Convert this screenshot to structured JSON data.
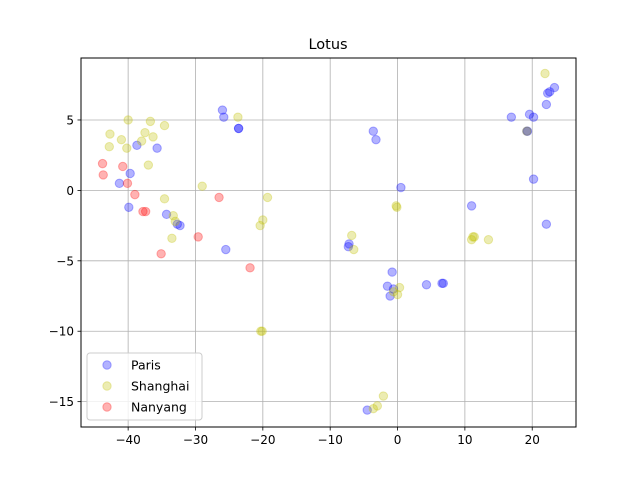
{
  "chart_data": {
    "type": "scatter",
    "title": "Lotus",
    "xlabel": "",
    "ylabel": "",
    "xlim": [
      -47,
      26.5
    ],
    "ylim": [
      -16.8,
      9.4
    ],
    "xticks": [
      -40,
      -30,
      -20,
      -10,
      0,
      10,
      20
    ],
    "yticks": [
      -15,
      -10,
      -5,
      0,
      5
    ],
    "xtick_labels": [
      "−40",
      "−30",
      "−20",
      "−10",
      "0",
      "10",
      "20"
    ],
    "ytick_labels": [
      "−15",
      "−10",
      "−5",
      "0",
      "5"
    ],
    "grid": true,
    "legend_position": "lower-left",
    "series": [
      {
        "name": "Paris",
        "color": "#0000ff",
        "points": [
          [
            -26,
            5.7
          ],
          [
            -25.8,
            5.2
          ],
          [
            -23.6,
            4.4
          ],
          [
            -23.6,
            4.4
          ],
          [
            -38.7,
            3.2
          ],
          [
            -35.7,
            3
          ],
          [
            -39.7,
            1.2
          ],
          [
            -41.3,
            0.5
          ],
          [
            -39.9,
            -1.2
          ],
          [
            -34.3,
            -1.7
          ],
          [
            -32.7,
            -2.4
          ],
          [
            -32.3,
            -2.5
          ],
          [
            -25.5,
            -4.2
          ],
          [
            -3.6,
            4.2
          ],
          [
            -3.2,
            3.6
          ],
          [
            0.5,
            0.2
          ],
          [
            -7.2,
            -3.8
          ],
          [
            -7.3,
            -4
          ],
          [
            -0.8,
            -5.8
          ],
          [
            -1.5,
            -6.8
          ],
          [
            -0.6,
            -7
          ],
          [
            -1.1,
            -7.5
          ],
          [
            4.3,
            -6.7
          ],
          [
            6.6,
            -6.6
          ],
          [
            6.8,
            -6.6
          ],
          [
            -4.5,
            -15.6
          ],
          [
            11,
            -1.1
          ],
          [
            16.9,
            5.2
          ],
          [
            19.6,
            5.4
          ],
          [
            20.2,
            5.2
          ],
          [
            19.2,
            4.2
          ],
          [
            19.3,
            4.2
          ],
          [
            22.1,
            6.1
          ],
          [
            22.3,
            6.9
          ],
          [
            22.6,
            7
          ],
          [
            23.3,
            7.3
          ],
          [
            20.2,
            0.8
          ],
          [
            22.1,
            -2.4
          ]
        ]
      },
      {
        "name": "Shanghai",
        "color": "#bfbf00",
        "points": [
          [
            -40,
            5
          ],
          [
            -36.7,
            4.9
          ],
          [
            -34.6,
            4.6
          ],
          [
            -42.7,
            4
          ],
          [
            -37.5,
            4.1
          ],
          [
            -36.3,
            3.8
          ],
          [
            -41,
            3.6
          ],
          [
            -38,
            3.5
          ],
          [
            -42.8,
            3.1
          ],
          [
            -40.2,
            3
          ],
          [
            -37,
            1.8
          ],
          [
            -34.6,
            -0.6
          ],
          [
            -29,
            0.3
          ],
          [
            -19.3,
            -0.5
          ],
          [
            -33.3,
            -1.8
          ],
          [
            -33,
            -2.2
          ],
          [
            -33.5,
            -3.4
          ],
          [
            -20,
            -2.1
          ],
          [
            -20.4,
            -2.5
          ],
          [
            -23.7,
            5.2
          ],
          [
            -20.3,
            -10
          ],
          [
            -20.1,
            -10
          ],
          [
            -6.8,
            -3.2
          ],
          [
            -6.5,
            -4.2
          ],
          [
            -0.2,
            -1.1
          ],
          [
            -0.1,
            -1.2
          ],
          [
            -0.6,
            -7.2
          ],
          [
            0,
            -7.4
          ],
          [
            0.3,
            -6.9
          ],
          [
            -3.6,
            -15.5
          ],
          [
            -3,
            -15.3
          ],
          [
            -2.1,
            -14.6
          ],
          [
            11.2,
            -3.3
          ],
          [
            11.4,
            -3.3
          ],
          [
            11,
            -3.5
          ],
          [
            13.5,
            -3.5
          ],
          [
            21.9,
            8.3
          ],
          [
            19.2,
            4.2
          ]
        ]
      },
      {
        "name": "Nanyang",
        "color": "#ff0000",
        "points": [
          [
            -43.8,
            1.9
          ],
          [
            -40.8,
            1.7
          ],
          [
            -43.7,
            1.1
          ],
          [
            -40.1,
            0.5
          ],
          [
            -39,
            -0.3
          ],
          [
            -37.8,
            -1.5
          ],
          [
            -37.4,
            -1.5
          ],
          [
            -26.5,
            -0.5
          ],
          [
            -29.6,
            -3.3
          ],
          [
            -35.1,
            -4.5
          ],
          [
            -21.9,
            -5.5
          ]
        ]
      }
    ]
  }
}
